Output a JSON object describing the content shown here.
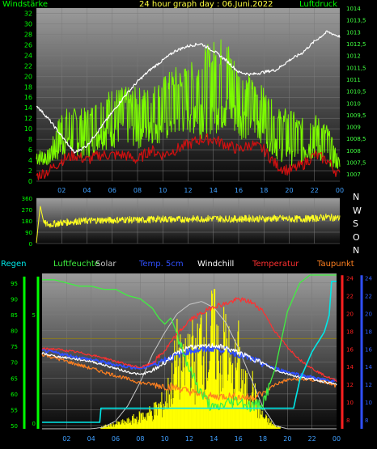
{
  "header": {
    "wind_label": "Windstärke",
    "title": "24 hour graph day : 06.Juni.2022",
    "pressure_label": "Luftdruck"
  },
  "direction_labels": [
    "N",
    "W",
    "S",
    "O",
    "N"
  ],
  "legend": [
    {
      "text": "Regen",
      "color": "#00e8e8"
    },
    {
      "text": "Luftfeuchte",
      "color": "#40f040"
    },
    {
      "text": "Solar",
      "color": "#c8c8c8"
    },
    {
      "text": "Temp. 5cm",
      "color": "#3050ff"
    },
    {
      "text": "Windchill",
      "color": "#ffffff"
    },
    {
      "text": "Temperatur",
      "color": "#ff3030"
    },
    {
      "text": "Taupunkt",
      "color": "#ff8020"
    }
  ],
  "colors": {
    "plot_top": "#9a9a9a",
    "plot_bottom": "#050505",
    "wind": "#7cfc00",
    "gust_red": "#d01010",
    "pressure": "#ffffff",
    "direction": "#ffff20",
    "axis_text": "#00ff00",
    "pressure_text": "#40ff40",
    "temp_axis": "#ff2020",
    "dew_axis": "#3050ff",
    "rain_axis": "#00ff00"
  },
  "chart_data": [
    {
      "name": "wind-pressure",
      "type": "line",
      "x_ticks": [
        "02",
        "04",
        "06",
        "08",
        "10",
        "12",
        "14",
        "16",
        "18",
        "20",
        "22",
        "00"
      ],
      "y_left_ticks": [
        "0",
        "2",
        "4",
        "6",
        "8",
        "10",
        "12",
        "14",
        "16",
        "18",
        "20",
        "22",
        "24",
        "26",
        "28",
        "30",
        "32"
      ],
      "y_right_ticks": [
        "1007",
        "1007,5",
        "1008",
        "1008,5",
        "1009",
        "1009,5",
        "1010",
        "1010,5",
        "1011",
        "1011,5",
        "1012",
        "1012,5",
        "1013",
        "1013,5",
        "1014"
      ],
      "ylim_left": [
        0,
        33
      ],
      "ylim_right": [
        1006.7,
        1014
      ],
      "wind_envelope": {
        "hours": [
          0,
          1,
          2,
          3,
          4,
          5,
          6,
          7,
          8,
          9,
          10,
          11,
          12,
          13,
          14,
          15,
          16,
          17,
          18,
          19,
          20,
          21,
          22,
          23,
          24
        ],
        "high": [
          6,
          6,
          14,
          14,
          14,
          16,
          18,
          18,
          18,
          18,
          20,
          22,
          22,
          25,
          27,
          28,
          22,
          20,
          18,
          14,
          14,
          12,
          13,
          11,
          4
        ],
        "low": [
          3,
          3,
          4,
          5,
          4,
          6,
          6,
          7,
          6,
          7,
          7,
          8,
          9,
          8,
          9,
          9,
          8,
          8,
          7,
          4,
          3,
          3,
          4,
          3,
          2
        ]
      },
      "gust_red": {
        "hours": [
          0,
          1,
          2,
          3,
          4,
          5,
          6,
          7,
          8,
          9,
          10,
          11,
          12,
          13,
          14,
          15,
          16,
          17,
          18,
          19,
          20,
          21,
          22,
          23,
          24
        ],
        "values": [
          1,
          2,
          4,
          5,
          4,
          5,
          5,
          5,
          4,
          6,
          5,
          6,
          7,
          8,
          8,
          7,
          6,
          7,
          6,
          3,
          2,
          3,
          5,
          4,
          1
        ]
      },
      "pressure": {
        "hours": [
          0,
          1,
          2,
          3,
          4,
          5,
          6,
          7,
          8,
          9,
          10,
          11,
          12,
          13,
          14,
          15,
          16,
          17,
          18,
          19,
          20,
          21,
          22,
          23,
          24
        ],
        "values": [
          1009.9,
          1009.3,
          1008.6,
          1007.9,
          1008.2,
          1008.9,
          1009.6,
          1010.3,
          1010.9,
          1011.4,
          1011.8,
          1012.2,
          1012.4,
          1012.5,
          1012.2,
          1011.8,
          1011.3,
          1011.2,
          1011.3,
          1011.4,
          1011.8,
          1012.1,
          1012.6,
          1013.0,
          1012.8
        ]
      }
    },
    {
      "name": "wind-direction",
      "type": "line",
      "x_ticks": [],
      "y_ticks": [
        "0",
        "90",
        "180",
        "270",
        "360"
      ],
      "ylim": [
        0,
        360
      ],
      "direction": {
        "hours": [
          0,
          0.3,
          0.6,
          1,
          2,
          3,
          4,
          5,
          6,
          7,
          8,
          9,
          10,
          11,
          12,
          13,
          14,
          15,
          16,
          17,
          18,
          19,
          20,
          21,
          22,
          23,
          24
        ],
        "values": [
          5,
          300,
          160,
          150,
          165,
          175,
          180,
          185,
          185,
          190,
          185,
          190,
          195,
          190,
          195,
          195,
          200,
          195,
          195,
          200,
          195,
          200,
          195,
          195,
          200,
          210,
          200
        ]
      }
    },
    {
      "name": "temperature-humidity",
      "type": "line",
      "x_ticks": [
        "02",
        "04",
        "06",
        "08",
        "10",
        "12",
        "14",
        "16",
        "18",
        "20",
        "22",
        "00"
      ],
      "y_left_ticks": [
        "50",
        "55",
        "60",
        "65",
        "70",
        "75",
        "80",
        "85",
        "90",
        "95"
      ],
      "y_rain_ticks": [
        "0",
        "5"
      ],
      "y_temp_ticks": [
        "8",
        "10",
        "12",
        "14",
        "16",
        "18",
        "20",
        "22",
        "24"
      ],
      "y_dew_ticks": [
        "8",
        "10",
        "12",
        "14",
        "16",
        "18",
        "20",
        "22",
        "24"
      ],
      "ylim_humidity": [
        49,
        98
      ],
      "ylim_temp": [
        7,
        24.5
      ],
      "series": [
        {
          "name": "Luftfeuchte",
          "color": "#40f040",
          "hours": [
            0,
            1,
            2,
            3,
            4,
            5,
            6,
            7,
            8,
            9,
            9.5,
            10,
            10.5,
            11,
            12,
            13,
            14,
            15,
            16,
            17,
            18,
            19,
            20,
            21,
            22,
            23,
            24
          ],
          "values": [
            96,
            96,
            95,
            94,
            94,
            93,
            93,
            91,
            90,
            87,
            84,
            82,
            84,
            79,
            68,
            60,
            55,
            57,
            58,
            56,
            57,
            68,
            86,
            95,
            98,
            98,
            98
          ]
        },
        {
          "name": "Temperatur",
          "color": "#ff3030",
          "hours": [
            0,
            1,
            2,
            3,
            4,
            5,
            6,
            7,
            8,
            9,
            10,
            11,
            12,
            13,
            14,
            15,
            16,
            17,
            18,
            19,
            20,
            21,
            22,
            23,
            24
          ],
          "values": [
            16,
            16,
            15.8,
            15.6,
            15.3,
            15,
            14.6,
            14.2,
            13.9,
            14.4,
            15.8,
            17.6,
            19.2,
            20,
            20.8,
            21.1,
            21.6,
            21.3,
            20.3,
            17.9,
            16.2,
            14.8,
            13.8,
            13,
            12.4
          ]
        },
        {
          "name": "Windchill",
          "color": "#ffffff",
          "hours": [
            0,
            1,
            2,
            3,
            4,
            5,
            6,
            7,
            8,
            9,
            10,
            11,
            12,
            13,
            14,
            15,
            16,
            17,
            18,
            19,
            20,
            21,
            22,
            23,
            24
          ],
          "values": [
            15.5,
            15.2,
            15,
            14.8,
            14.6,
            14.2,
            13.8,
            13.4,
            13.1,
            13.5,
            14.5,
            15.5,
            16.3,
            16.2,
            16.4,
            16.1,
            15.6,
            15,
            14.4,
            13.6,
            13.2,
            12.8,
            12.6,
            12.3,
            12
          ]
        },
        {
          "name": "Temp. 5cm",
          "color": "#3050ff",
          "hours": [
            0,
            1,
            2,
            3,
            4,
            5,
            6,
            7,
            8,
            9,
            10,
            11,
            12,
            13,
            14,
            15,
            16,
            17,
            18,
            19,
            20,
            21,
            22,
            23,
            24
          ],
          "values": [
            15.8,
            15.6,
            15.3,
            15,
            14.8,
            14.5,
            14.2,
            14,
            13.8,
            14.2,
            14.8,
            15.3,
            15.8,
            15.9,
            16.1,
            15.9,
            15.4,
            14.9,
            14.3,
            13.8,
            13.4,
            13.1,
            12.8,
            12.5,
            12.3
          ]
        },
        {
          "name": "Taupunkt",
          "color": "#ff8020",
          "hours": [
            0,
            1,
            2,
            3,
            4,
            5,
            6,
            7,
            8,
            9,
            10,
            11,
            12,
            13,
            14,
            15,
            16,
            17,
            18,
            19,
            20,
            21,
            22,
            23,
            24
          ],
          "values": [
            15.4,
            15,
            14.6,
            14.2,
            13.8,
            13.4,
            13,
            12.6,
            12.2,
            12,
            11.8,
            11.6,
            11.2,
            10.8,
            10.6,
            10.7,
            10.6,
            10.5,
            11,
            12,
            12.5,
            12.6,
            12.5,
            12.3,
            11.8
          ]
        },
        {
          "name": "Solar",
          "color": "#c8c8c8",
          "hours": [
            0,
            4,
            5,
            6,
            7,
            8,
            9,
            10,
            11,
            12,
            13,
            14,
            15,
            16,
            17,
            18,
            19,
            20,
            24
          ],
          "values": [
            0,
            0,
            1,
            5,
            15,
            30,
            48,
            62,
            74,
            80,
            82,
            78,
            68,
            52,
            33,
            14,
            2,
            0,
            0
          ]
        },
        {
          "name": "Regen",
          "color": "#00e8e8",
          "hours": [
            0,
            4.7,
            4.8,
            20.5,
            21,
            22,
            23,
            23.4,
            23.6,
            24
          ],
          "values": [
            0,
            0,
            0.5,
            0.5,
            1.5,
            2.5,
            3.2,
            3.8,
            5,
            5
          ]
        }
      ],
      "solar_bars": {
        "hours": [
          5,
          6,
          7,
          8,
          9,
          10,
          10.5,
          11,
          11.5,
          12,
          12.5,
          13,
          13.5,
          14,
          14.5,
          15,
          15.5,
          16,
          16.5,
          17,
          17.5,
          18,
          19
        ],
        "values": [
          2,
          4,
          6,
          10,
          14,
          22,
          35,
          60,
          45,
          72,
          50,
          78,
          62,
          85,
          55,
          75,
          40,
          60,
          30,
          40,
          20,
          10,
          2
        ]
      }
    }
  ]
}
